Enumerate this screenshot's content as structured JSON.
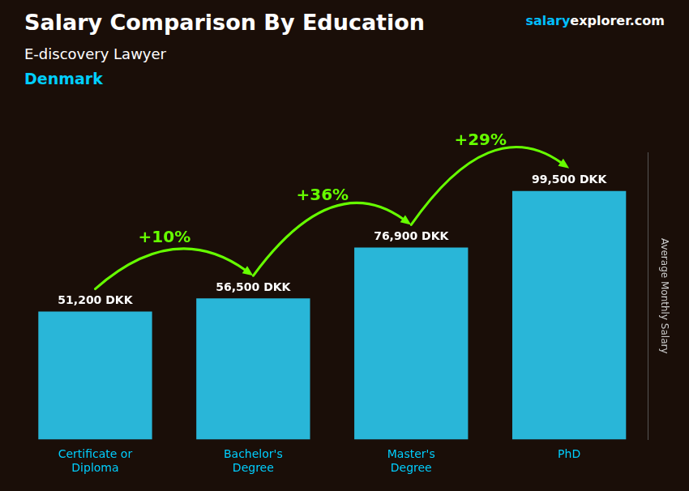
{
  "chart_data": {
    "type": "bar",
    "title": "Salary Comparison By Education",
    "subtitle": "E-discovery Lawyer",
    "country": "Denmark",
    "country_color": "#00cfff",
    "website": [
      "salary",
      "explorer",
      ".com"
    ],
    "website_colors": [
      "#00bfff",
      "#ffffff",
      "#ffffff"
    ],
    "ylabel": "Average Monthly Salary",
    "categories": [
      "Certificate or\nDiploma",
      "Bachelor's\nDegree",
      "Master's\nDegree",
      "PhD"
    ],
    "values": [
      51200,
      56500,
      76900,
      99500
    ],
    "value_labels": [
      "51,200 DKK",
      "56,500 DKK",
      "76,900 DKK",
      "99,500 DKK"
    ],
    "data_labels": true,
    "annotations": [
      "+10%",
      "+36%",
      "+29%"
    ],
    "annotation_color": "#66ff00",
    "color": "#29b6d8",
    "tick_color": "#00cfff",
    "ylim": [
      0,
      115000
    ],
    "grid": false,
    "tick_labels": "x"
  }
}
